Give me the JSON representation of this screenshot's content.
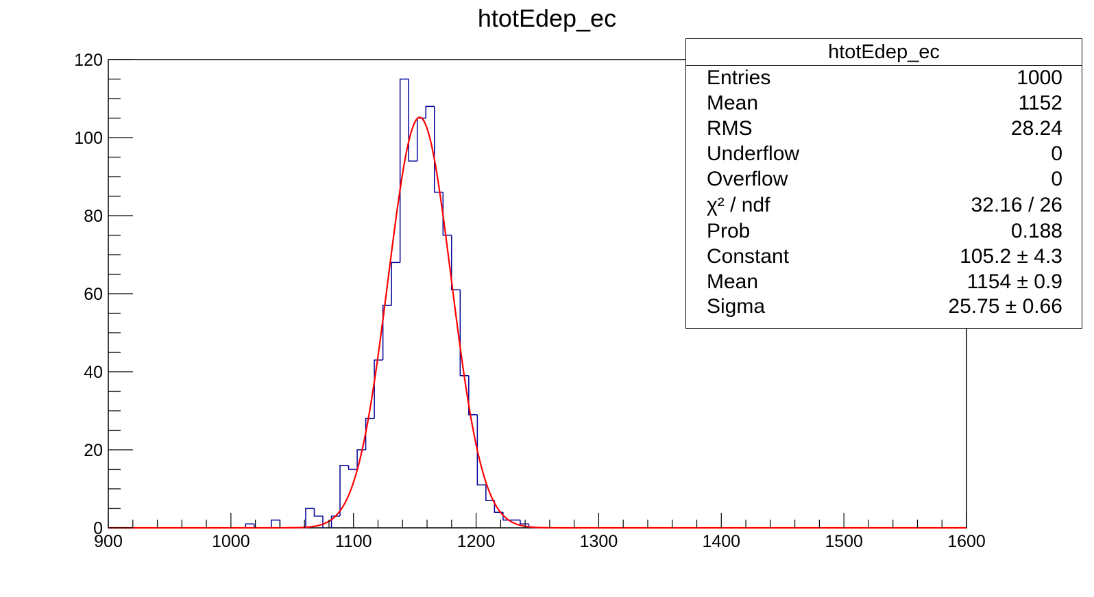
{
  "title": "htotEdep_ec",
  "colors": {
    "histogram": "#000099",
    "fit": "#ff0000",
    "axis": "#000000"
  },
  "stats_box": {
    "title": "htotEdep_ec",
    "rows": [
      {
        "key": "Entries",
        "value": "1000"
      },
      {
        "key": "Mean",
        "value": "1152"
      },
      {
        "key": "RMS",
        "value": "28.24"
      },
      {
        "key": "Underflow",
        "value": "0"
      },
      {
        "key": "Overflow",
        "value": "0"
      },
      {
        "key": "χ² / ndf",
        "value": "32.16 / 26"
      },
      {
        "key": "Prob",
        "value": "0.188"
      },
      {
        "key": "Constant",
        "value": "105.2 ± 4.3"
      },
      {
        "key": "Mean",
        "value": "1154 ± 0.9"
      },
      {
        "key": "Sigma",
        "value": "25.75 ± 0.66"
      }
    ]
  },
  "chart_data": {
    "type": "bar",
    "title": "htotEdep_ec",
    "xlabel": "",
    "ylabel": "",
    "xlim": [
      900,
      1600
    ],
    "ylim": [
      0,
      120
    ],
    "x_ticks": [
      "900",
      "1000",
      "1100",
      "1200",
      "1300",
      "1400",
      "1500",
      "1600"
    ],
    "y_ticks": [
      "0",
      "20",
      "40",
      "60",
      "80",
      "100",
      "120"
    ],
    "grid": false,
    "legend": "top-right",
    "histogram": {
      "bin_width": 7,
      "bin_starts": [
        1012,
        1033,
        1061,
        1068,
        1082,
        1089,
        1096,
        1103,
        1110,
        1117,
        1124,
        1131,
        1138,
        1145,
        1152,
        1159,
        1166,
        1173,
        1180,
        1187,
        1194,
        1201,
        1208,
        1215,
        1222,
        1229,
        1236
      ],
      "counts": [
        1,
        2,
        5,
        3,
        3,
        16,
        15,
        20,
        28,
        43,
        57,
        68,
        115,
        94,
        105,
        108,
        86,
        75,
        61,
        39,
        29,
        11,
        7,
        4,
        2,
        2,
        1
      ]
    },
    "fit": {
      "function": "gaus",
      "constant": 105.2,
      "mean": 1154,
      "sigma": 25.75
    }
  }
}
